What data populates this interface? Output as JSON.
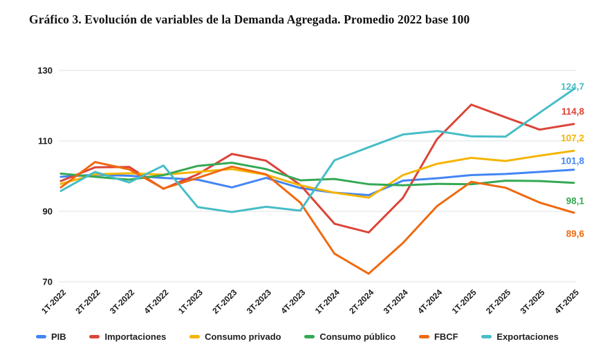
{
  "title": "Gráfico 3. Evolución de variables de la Demanda Agregada. Promedio 2022 base 100",
  "colors": {
    "grid": "#e2e2e2",
    "axis_text": "#1a1a1a",
    "background": "#ffffff"
  },
  "chart_data": {
    "type": "line",
    "title": "Gráfico 3. Evolución de variables de la Demanda Agregada. Promedio 2022 base 100",
    "xlabel": "",
    "ylabel": "",
    "ylim": [
      70,
      134
    ],
    "y_ticks": [
      130,
      110,
      90,
      70
    ],
    "grid": "horizontal-only",
    "legend_position": "bottom",
    "categories": [
      "1T-2022",
      "2T-2022",
      "3T-2022",
      "4T-2022",
      "1T-2023",
      "2T-2023",
      "3T-2023",
      "4T-2023",
      "1T-2024",
      "2T-2024",
      "3T-2024",
      "4T-2024",
      "1T-2025",
      "2T-2025",
      "3T-2025",
      "4T-2025"
    ],
    "series": [
      {
        "name": "PIB",
        "color": "#4285F4",
        "end_label": "101,8",
        "values": [
          99.8,
          100.4,
          100.1,
          99.5,
          99.0,
          96.8,
          99.5,
          96.6,
          95.3,
          94.6,
          98.7,
          99.4,
          100.3,
          100.6,
          101.2,
          101.8
        ]
      },
      {
        "name": "Importaciones",
        "color": "#DB4437",
        "end_label": "114,8",
        "values": [
          98.6,
          102.5,
          102.6,
          96.4,
          100.5,
          106.3,
          104.4,
          97.5,
          86.5,
          84.0,
          93.8,
          110.5,
          120.3,
          116.7,
          113.2,
          114.8
        ]
      },
      {
        "name": "Consumo privado",
        "color": "#F4B400",
        "end_label": "107,2",
        "values": [
          97.8,
          100.5,
          100.8,
          100.4,
          101.2,
          102.0,
          100.4,
          97.4,
          95.3,
          93.9,
          100.3,
          103.5,
          105.2,
          104.3,
          105.8,
          107.2
        ]
      },
      {
        "name": "Consumo público",
        "color": "#34A853",
        "end_label": "98,1",
        "values": [
          100.7,
          99.8,
          99.0,
          100.3,
          102.9,
          103.8,
          102.0,
          98.8,
          99.2,
          97.7,
          97.4,
          97.8,
          97.7,
          98.7,
          98.6,
          98.1
        ]
      },
      {
        "name": "FBCF",
        "color": "#F0690F",
        "end_label": "89,6",
        "values": [
          96.8,
          104.0,
          101.9,
          96.5,
          99.5,
          102.7,
          100.5,
          92.5,
          78.0,
          72.3,
          81.0,
          91.5,
          98.4,
          96.7,
          92.5,
          89.6
        ]
      },
      {
        "name": "Exportaciones",
        "color": "#46BDC6",
        "end_label": "124,7",
        "values": [
          95.8,
          101.2,
          98.2,
          103.0,
          91.2,
          89.8,
          91.3,
          90.2,
          104.5,
          108.2,
          111.8,
          112.8,
          111.3,
          111.2,
          118.0,
          124.7
        ]
      }
    ]
  }
}
